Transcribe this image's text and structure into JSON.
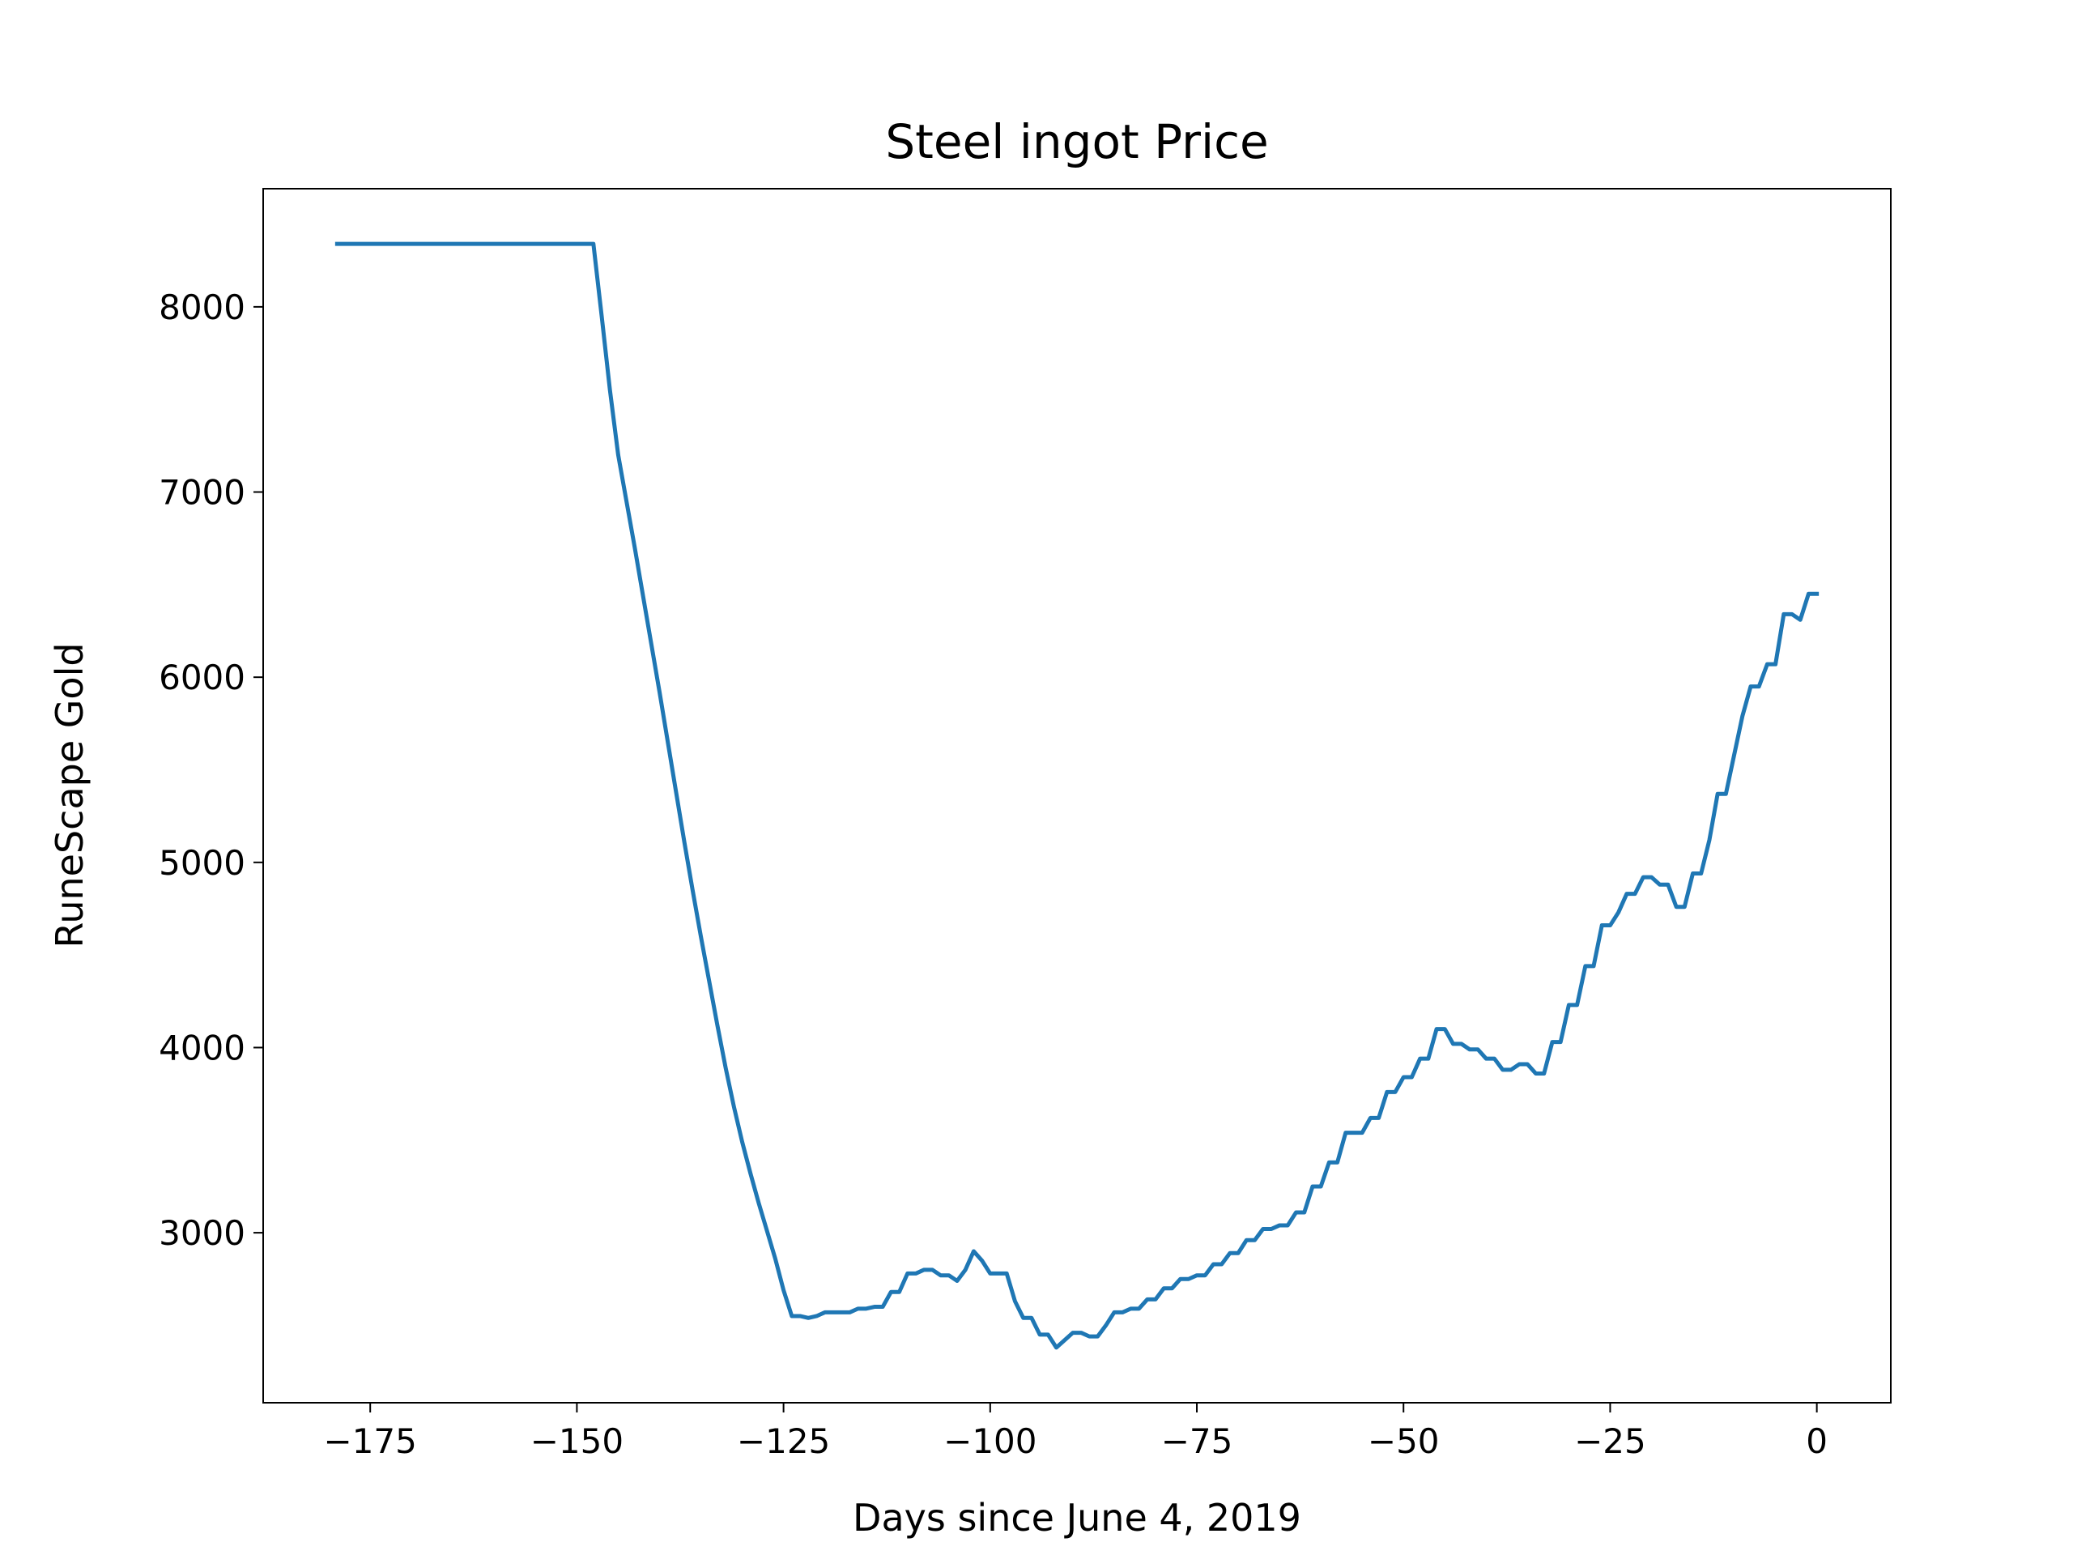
{
  "chart_data": {
    "type": "line",
    "title": "Steel ingot Price",
    "x_label": "Days since June 4, 2019",
    "y_label": "RuneScape Gold",
    "xlim": [
      -187.95,
      8.95
    ],
    "ylim": [
      2082,
      8638
    ],
    "xticks": [
      {
        "value": -175,
        "label": "−175"
      },
      {
        "value": -150,
        "label": "−150"
      },
      {
        "value": -125,
        "label": "−125"
      },
      {
        "value": -100,
        "label": "−100"
      },
      {
        "value": -75,
        "label": "−75"
      },
      {
        "value": -50,
        "label": "−50"
      },
      {
        "value": -25,
        "label": "−25"
      },
      0
    ],
    "yticks": [
      3000,
      4000,
      5000,
      6000,
      7000,
      8000
    ],
    "grid": false,
    "x": [
      -179,
      -148,
      -147,
      -146,
      -145,
      -144,
      -143,
      -142,
      -141,
      -140,
      -139,
      -138,
      -137,
      -136,
      -135,
      -134,
      -133,
      -132,
      -131,
      -130,
      -129,
      -128,
      -127,
      -126,
      -125,
      -124,
      -123,
      -122,
      -121,
      -120,
      -118,
      -117,
      -116,
      -115,
      -114,
      -113,
      -112,
      -111,
      -110,
      -109,
      -108,
      -107,
      -106,
      -105,
      -104,
      -103,
      -102,
      -101,
      -100,
      -99,
      -98,
      -97,
      -96,
      -95,
      -94,
      -93,
      -92,
      -91,
      -90,
      -89,
      -88,
      -87,
      -86,
      -85,
      -84,
      -83,
      -82,
      -81,
      -80,
      -79,
      -78,
      -77,
      -76,
      -75,
      -74,
      -73,
      -72,
      -71,
      -70,
      -69,
      -68,
      -67,
      -66,
      -65,
      -64,
      -63,
      -62,
      -61,
      -60,
      -59,
      -58,
      -57,
      -56,
      -55,
      -54,
      -53,
      -52,
      -51,
      -50,
      -49,
      -48,
      -47,
      -46,
      -45,
      -44,
      -43,
      -42,
      -41,
      -40,
      -39,
      -38,
      -37,
      -36,
      -35,
      -34,
      -33,
      -32,
      -31,
      -30,
      -29,
      -28,
      -27,
      -26,
      -25,
      -24,
      -23,
      -22,
      -21,
      -20,
      -19,
      -18,
      -17,
      -16,
      -15,
      -14,
      -13,
      -12,
      -11,
      -10,
      -9,
      -8,
      -7,
      -6,
      -5,
      -4,
      -3,
      -2,
      -1,
      0
    ],
    "series": [
      {
        "name": "Steel ingot",
        "color": "#1f77b4",
        "values": [
          8340,
          8340,
          7950,
          7550,
          7200,
          6950,
          6700,
          6440,
          6180,
          5920,
          5650,
          5380,
          5110,
          4850,
          4600,
          4360,
          4120,
          3890,
          3680,
          3490,
          3320,
          3160,
          3010,
          2860,
          2690,
          2550,
          2550,
          2540,
          2550,
          2570,
          2570,
          2570,
          2590,
          2590,
          2600,
          2600,
          2680,
          2680,
          2780,
          2780,
          2800,
          2800,
          2770,
          2770,
          2740,
          2800,
          2900,
          2850,
          2780,
          2780,
          2780,
          2630,
          2540,
          2540,
          2450,
          2450,
          2380,
          2420,
          2460,
          2460,
          2440,
          2440,
          2500,
          2570,
          2570,
          2590,
          2590,
          2640,
          2640,
          2700,
          2700,
          2750,
          2750,
          2770,
          2770,
          2830,
          2830,
          2890,
          2890,
          2960,
          2960,
          3020,
          3020,
          3040,
          3040,
          3110,
          3110,
          3250,
          3250,
          3380,
          3380,
          3540,
          3540,
          3540,
          3620,
          3620,
          3760,
          3760,
          3840,
          3840,
          3940,
          3940,
          4100,
          4100,
          4020,
          4020,
          3990,
          3990,
          3940,
          3940,
          3880,
          3880,
          3910,
          3910,
          3860,
          3860,
          4030,
          4030,
          4230,
          4230,
          4440,
          4440,
          4660,
          4660,
          4730,
          4830,
          4830,
          4920,
          4920,
          4880,
          4880,
          4760,
          4760,
          4940,
          4940,
          5120,
          5370,
          5370,
          5580,
          5790,
          5950,
          5950,
          6070,
          6070,
          6340,
          6340,
          6310,
          6450,
          6450
        ]
      }
    ]
  }
}
